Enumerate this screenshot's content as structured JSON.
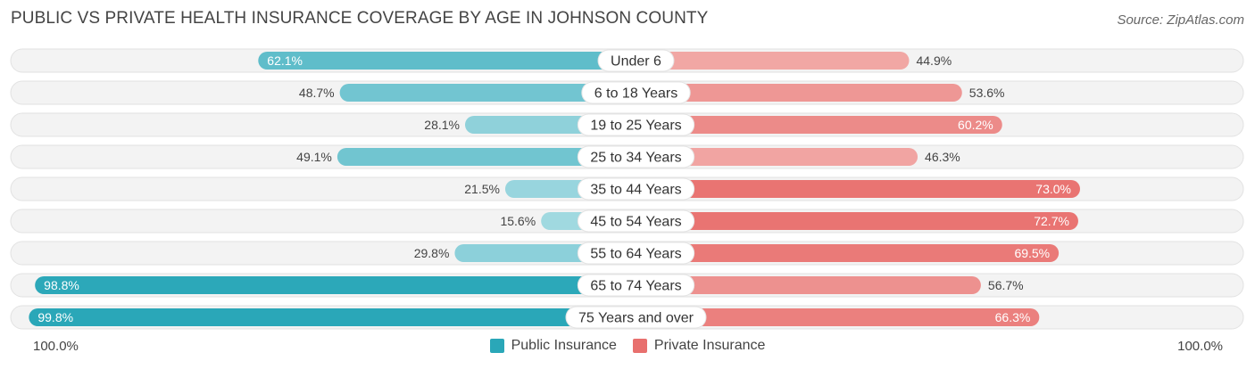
{
  "title": "PUBLIC VS PRIVATE HEALTH INSURANCE COVERAGE BY AGE IN JOHNSON COUNTY",
  "source": "Source: ZipAtlas.com",
  "axis": {
    "left_label": "100.0%",
    "right_label": "100.0%"
  },
  "legend": [
    {
      "label": "Public Insurance",
      "color": "#2aa7b8"
    },
    {
      "label": "Private Insurance",
      "color": "#e8706e"
    }
  ],
  "chart_data": {
    "type": "bar",
    "orientation": "horizontal-diverging",
    "title": "PUBLIC VS PRIVATE HEALTH INSURANCE COVERAGE BY AGE IN JOHNSON COUNTY",
    "categories": [
      "Under 6",
      "6 to 18 Years",
      "19 to 25 Years",
      "25 to 34 Years",
      "35 to 44 Years",
      "45 to 54 Years",
      "55 to 64 Years",
      "65 to 74 Years",
      "75 Years and over"
    ],
    "xlim": [
      -100,
      100
    ],
    "series": [
      {
        "name": "Public Insurance",
        "side": "left",
        "values": [
          62.1,
          48.7,
          28.1,
          49.1,
          21.5,
          15.6,
          29.8,
          98.8,
          99.8
        ],
        "labels": [
          "62.1%",
          "48.7%",
          "28.1%",
          "49.1%",
          "21.5%",
          "15.6%",
          "29.8%",
          "98.8%",
          "99.8%"
        ]
      },
      {
        "name": "Private Insurance",
        "side": "right",
        "values": [
          44.9,
          53.6,
          60.2,
          46.3,
          73.0,
          72.7,
          69.5,
          56.7,
          66.3
        ],
        "labels": [
          "44.9%",
          "53.6%",
          "60.2%",
          "46.3%",
          "73.0%",
          "72.7%",
          "69.5%",
          "56.7%",
          "66.3%"
        ]
      }
    ]
  }
}
